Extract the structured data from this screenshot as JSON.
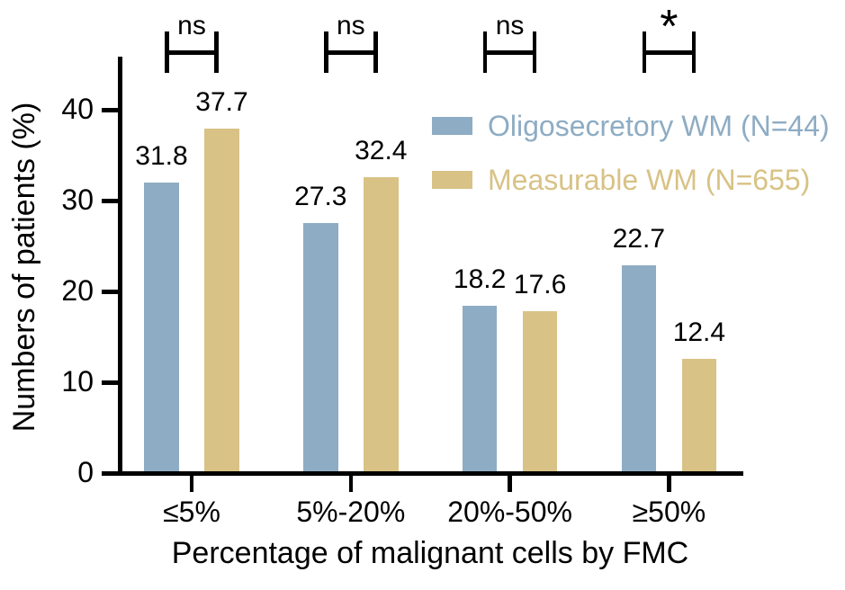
{
  "chart_data": {
    "type": "bar",
    "title": "",
    "xlabel": "Percentage of malignant cells by FMC",
    "ylabel": "Numbers of patients (%)",
    "categories": [
      "≤5%",
      "5%-20%",
      "20%-50%",
      "≥50%"
    ],
    "series": [
      {
        "name": "Oligosecretory WM (N=44)",
        "color": "#8EACC3",
        "values": [
          31.8,
          27.3,
          18.2,
          22.7
        ]
      },
      {
        "name": "Measurable WM (N=655)",
        "color": "#D8C286",
        "values": [
          37.7,
          32.4,
          17.6,
          12.4
        ]
      }
    ],
    "value_labels": [
      "31.8",
      "37.7",
      "27.3",
      "32.4",
      "18.2",
      "17.6",
      "22.7",
      "12.4"
    ],
    "significance": [
      "ns",
      "ns",
      "ns",
      "*"
    ],
    "yticks": [
      "0",
      "10",
      "20",
      "30",
      "40"
    ],
    "ylim": [
      0,
      45
    ],
    "grid": false,
    "legend_position": "upper right",
    "bar_edge": "none",
    "axis_color": "#000000"
  }
}
